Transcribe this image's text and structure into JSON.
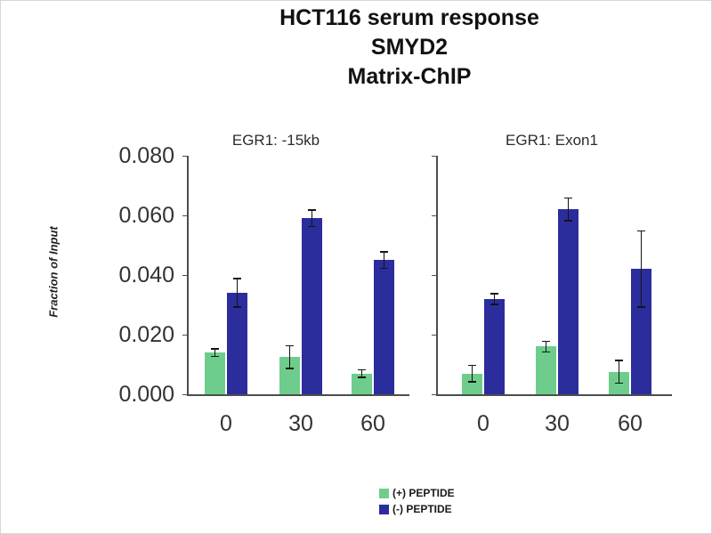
{
  "title": {
    "line1": "HCT116 serum response",
    "line2": "SMYD2",
    "line3": "Matrix-ChIP"
  },
  "chart_data": {
    "type": "bar",
    "title": "HCT116 serum response SMYD2 Matrix-ChIP",
    "ylabel": "Fraction of Input",
    "xlabel": "",
    "ylim": [
      0,
      0.08
    ],
    "grid": false,
    "legend_position": "bottom",
    "ytick_labels": [
      "0.080",
      "0.060",
      "0.040",
      "0.020",
      "0.000"
    ],
    "categories": [
      "0",
      "30",
      "60"
    ],
    "legend": [
      {
        "label": "(+) PEPTIDE",
        "color": "#6ecd8d"
      },
      {
        "label": "(-) PEPTIDE",
        "color": "#2b2d9c"
      }
    ],
    "panels": [
      {
        "title": "EGR1: -15kb",
        "series": [
          {
            "name": "(+) PEPTIDE",
            "color": "#6ecd8d",
            "values": [
              0.014,
              0.0125,
              0.007
            ],
            "errors": [
              0.0015,
              0.004,
              0.0015
            ]
          },
          {
            "name": "(-) PEPTIDE",
            "color": "#2b2d9c",
            "values": [
              0.034,
              0.059,
              0.045
            ],
            "errors": [
              0.005,
              0.003,
              0.003
            ]
          }
        ]
      },
      {
        "title": "EGR1: Exon1",
        "series": [
          {
            "name": "(+) PEPTIDE",
            "color": "#6ecd8d",
            "values": [
              0.007,
              0.016,
              0.0075
            ],
            "errors": [
              0.003,
              0.002,
              0.004
            ]
          },
          {
            "name": "(-) PEPTIDE",
            "color": "#2b2d9c",
            "values": [
              0.032,
              0.062,
              0.042
            ],
            "errors": [
              0.002,
              0.004,
              0.013
            ]
          }
        ]
      }
    ]
  }
}
